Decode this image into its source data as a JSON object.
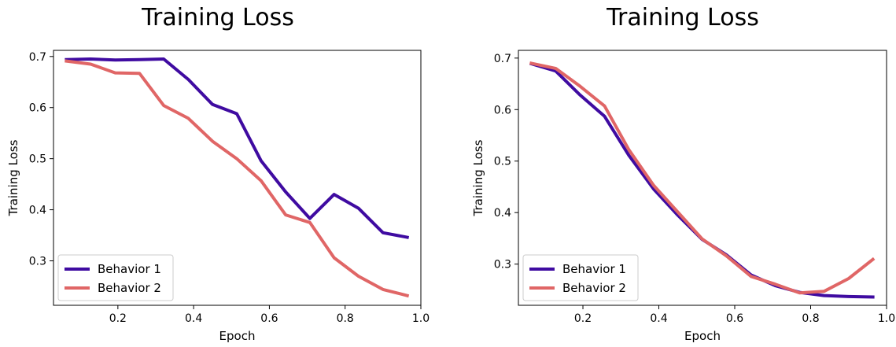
{
  "chart_data": [
    {
      "type": "line",
      "title": "Training Loss",
      "xlabel": "Epoch",
      "ylabel": "Training Loss",
      "xlim": [
        0.03,
        1.0
      ],
      "ylim": [
        0.213,
        0.712
      ],
      "xticks": [
        0.2,
        0.4,
        0.6,
        0.8,
        1.0
      ],
      "xtick_labels": [
        "0.2",
        "0.4",
        "0.6",
        "0.8",
        "1.0"
      ],
      "yticks": [
        0.3,
        0.4,
        0.5,
        0.6,
        0.7
      ],
      "ytick_labels": [
        "0.3",
        "0.4",
        "0.5",
        "0.6",
        "0.7"
      ],
      "grid": false,
      "legend": "lower-left",
      "series": [
        {
          "name": "Behavior 1",
          "color": "#3f0ba1",
          "x": [
            0.064,
            0.128,
            0.193,
            0.257,
            0.321,
            0.386,
            0.45,
            0.514,
            0.578,
            0.643,
            0.707,
            0.771,
            0.835,
            0.9,
            0.964
          ],
          "y": [
            0.694,
            0.695,
            0.693,
            0.694,
            0.695,
            0.655,
            0.606,
            0.588,
            0.496,
            0.435,
            0.383,
            0.43,
            0.403,
            0.355,
            0.346
          ]
        },
        {
          "name": "Behavior 2",
          "color": "#e06666",
          "x": [
            0.064,
            0.128,
            0.193,
            0.257,
            0.321,
            0.386,
            0.45,
            0.514,
            0.578,
            0.643,
            0.707,
            0.771,
            0.835,
            0.9,
            0.964
          ],
          "y": [
            0.691,
            0.685,
            0.668,
            0.667,
            0.604,
            0.579,
            0.534,
            0.5,
            0.457,
            0.39,
            0.375,
            0.306,
            0.27,
            0.244,
            0.232
          ]
        }
      ]
    },
    {
      "type": "line",
      "title": "Training Loss",
      "xlabel": "Epoch",
      "ylabel": "Training Loss",
      "xlim": [
        0.03,
        1.0
      ],
      "ylim": [
        0.22,
        0.715
      ],
      "xticks": [
        0.2,
        0.4,
        0.6,
        0.8,
        1.0
      ],
      "xtick_labels": [
        "0.2",
        "0.4",
        "0.6",
        "0.8",
        "1.0"
      ],
      "yticks": [
        0.3,
        0.4,
        0.5,
        0.6,
        0.7
      ],
      "ytick_labels": [
        "0.3",
        "0.4",
        "0.5",
        "0.6",
        "0.7"
      ],
      "grid": false,
      "legend": "lower-left",
      "series": [
        {
          "name": "Behavior 1",
          "color": "#3f0ba1",
          "x": [
            0.064,
            0.128,
            0.193,
            0.257,
            0.321,
            0.386,
            0.45,
            0.514,
            0.578,
            0.643,
            0.707,
            0.771,
            0.835,
            0.9,
            0.964
          ],
          "y": [
            0.689,
            0.675,
            0.628,
            0.587,
            0.511,
            0.446,
            0.395,
            0.348,
            0.318,
            0.279,
            0.258,
            0.245,
            0.239,
            0.237,
            0.236
          ]
        },
        {
          "name": "Behavior 2",
          "color": "#e06666",
          "x": [
            0.064,
            0.128,
            0.193,
            0.257,
            0.321,
            0.386,
            0.45,
            0.514,
            0.578,
            0.643,
            0.707,
            0.771,
            0.835,
            0.9,
            0.964
          ],
          "y": [
            0.69,
            0.68,
            0.645,
            0.607,
            0.522,
            0.453,
            0.401,
            0.349,
            0.316,
            0.276,
            0.261,
            0.244,
            0.247,
            0.272,
            0.309
          ]
        }
      ]
    }
  ]
}
